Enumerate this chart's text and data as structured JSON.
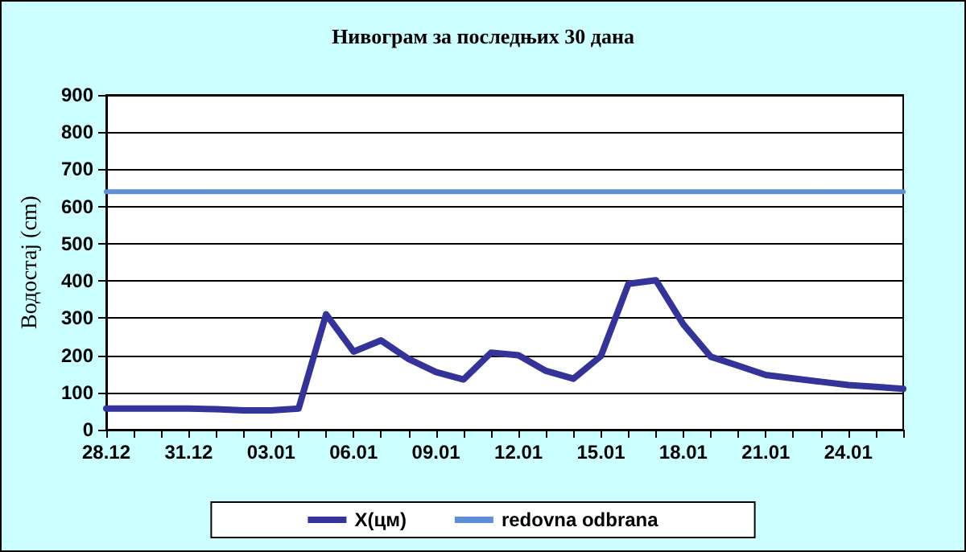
{
  "chart_data": {
    "type": "line",
    "title": "Нивограм за последњих 30 дана",
    "ylabel": "Водостај (cm)",
    "categories": [
      "28.12",
      null,
      null,
      "31.12",
      null,
      null,
      "03.01",
      null,
      null,
      "06.01",
      null,
      null,
      "09.01",
      null,
      null,
      "12.01",
      null,
      null,
      "15.01",
      null,
      null,
      "18.01",
      null,
      null,
      "21.01",
      null,
      null,
      "24.01",
      null,
      null
    ],
    "series": [
      {
        "name": "X(цм)",
        "color": "#333399",
        "values": [
          57,
          57,
          57,
          57,
          55,
          52,
          52,
          57,
          310,
          210,
          240,
          190,
          155,
          135,
          207,
          200,
          158,
          137,
          198,
          392,
          402,
          283,
          196,
          172,
          147,
          138,
          129,
          120,
          115,
          110
        ]
      },
      {
        "name": "redovna odbrana",
        "color": "#5b8fd6",
        "values": [
          640,
          640,
          640,
          640,
          640,
          640,
          640,
          640,
          640,
          640,
          640,
          640,
          640,
          640,
          640,
          640,
          640,
          640,
          640,
          640,
          640,
          640,
          640,
          640,
          640,
          640,
          640,
          640,
          640,
          640
        ]
      }
    ],
    "ylim": [
      0,
      900
    ],
    "yticks": [
      0,
      100,
      200,
      300,
      400,
      500,
      600,
      700,
      800,
      900
    ],
    "grid": "y",
    "legend": "bottom",
    "marker": "none",
    "line_style": "solid"
  }
}
